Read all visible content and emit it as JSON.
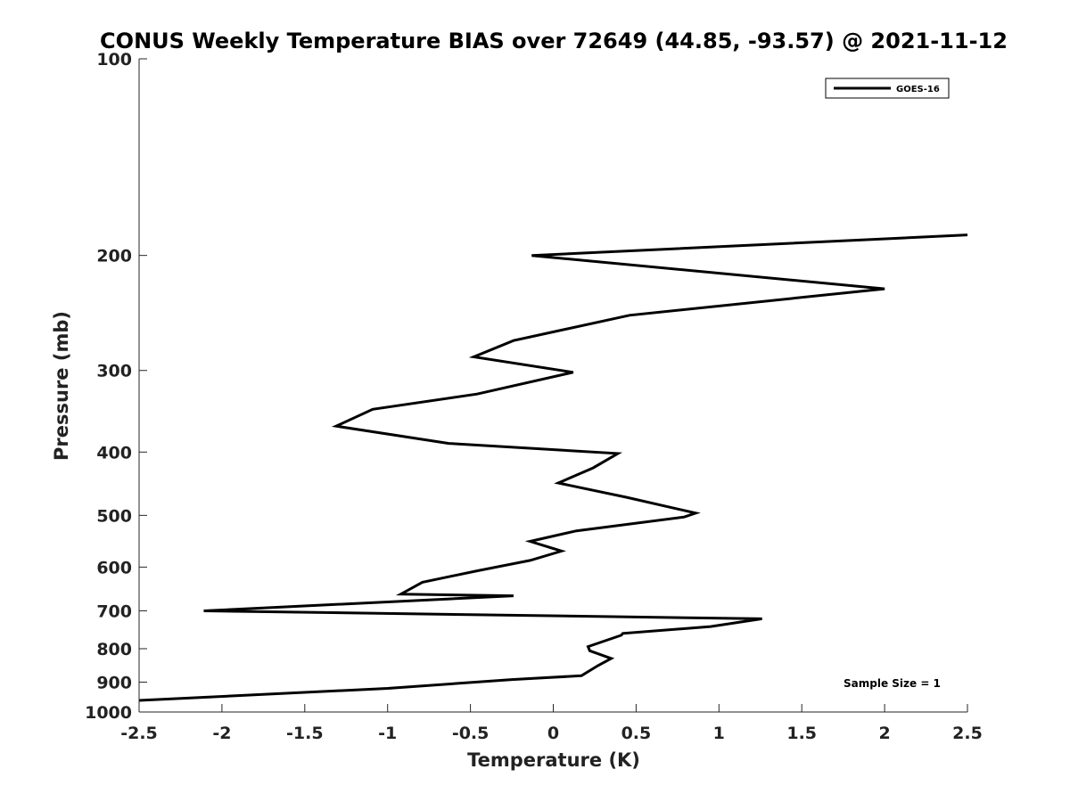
{
  "chart_data": {
    "type": "line",
    "title": "CONUS Weekly Temperature BIAS over 72649 (44.85, -93.57) @ 2021-11-12",
    "xlabel": "Temperature (K)",
    "ylabel": "Pressure (mb)",
    "xlim": [
      -2.5,
      2.5
    ],
    "ylim": [
      1000,
      100
    ],
    "yscale": "log",
    "y_reversed": true,
    "grid": false,
    "legend_position": "top-right",
    "x_ticks": [
      -2.5,
      -2,
      -1.5,
      -1,
      -0.5,
      0,
      0.5,
      1,
      1.5,
      2,
      2.5
    ],
    "x_tick_labels": [
      "-2.5",
      "-2",
      "-1.5",
      "-1",
      "-0.5",
      "0",
      "0.5",
      "1",
      "1.5",
      "2",
      "2.5"
    ],
    "y_ticks": [
      100,
      200,
      300,
      400,
      500,
      600,
      700,
      800,
      900,
      1000
    ],
    "y_tick_labels": [
      "100",
      "200",
      "300",
      "400",
      "500",
      "600",
      "700",
      "800",
      "900",
      "1000"
    ],
    "series": [
      {
        "name": "GOES-16",
        "color": "#000000",
        "x": [
          2.5,
          -0.13,
          2.0,
          0.46,
          -0.24,
          -0.48,
          0.12,
          -0.46,
          -1.09,
          -1.31,
          -0.63,
          0.39,
          0.24,
          0.03,
          0.44,
          0.86,
          0.79,
          0.14,
          -0.14,
          0.05,
          -0.14,
          -0.46,
          -0.79,
          -0.92,
          -0.24,
          -2.11,
          1.26,
          0.95,
          0.42,
          0.41,
          0.21,
          0.22,
          0.35,
          0.27,
          0.17,
          -0.25,
          -1.0,
          -2.5
        ],
        "y": [
          186,
          200,
          225,
          247,
          270,
          286,
          302,
          326,
          344,
          365,
          388,
          402,
          423,
          446,
          469,
          496,
          503,
          528,
          548,
          567,
          586,
          608,
          633,
          660,
          664,
          700,
          720,
          740,
          758,
          763,
          794,
          806,
          828,
          849,
          880,
          892,
          920,
          960
        ]
      }
    ],
    "annotations": [
      "Sample Size = 1"
    ]
  }
}
